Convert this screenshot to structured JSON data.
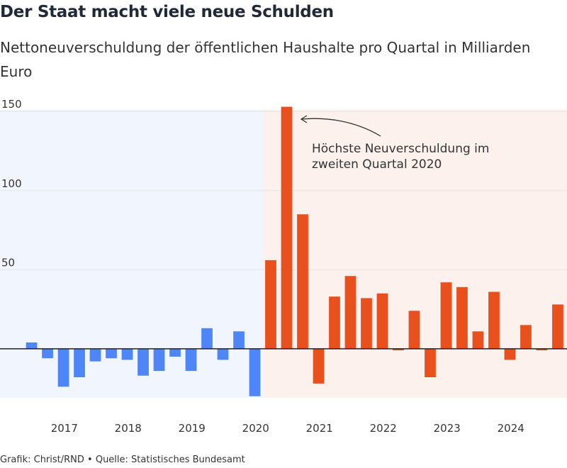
{
  "chart_data": {
    "type": "bar",
    "title": "Der Staat macht viele neue Schulden",
    "subtitle": "Nettoneuverschuldung der öffentlichen Haushalte pro Quartal in Milliarden Euro",
    "annotation": [
      "Höchste Neuverschuldung im",
      "zweiten Quartal 2020"
    ],
    "source": "Grafik: Christ/RND • Quelle: Statistisches Bundesamt",
    "x": [
      2016.375,
      2016.625,
      2016.875,
      2017.125,
      2017.375,
      2017.625,
      2017.875,
      2018.125,
      2018.375,
      2018.625,
      2018.875,
      2019.125,
      2019.375,
      2019.625,
      2019.875,
      2020.125,
      2020.375,
      2020.625,
      2020.875,
      2021.125,
      2021.375,
      2021.625,
      2021.875,
      2022.125,
      2022.375,
      2022.625,
      2022.875,
      2023.125,
      2023.375,
      2023.625,
      2023.875,
      2024.125,
      2024.375,
      2024.625
    ],
    "values": [
      4,
      -6,
      -24,
      -18,
      -8,
      -6,
      -7,
      -17,
      -14,
      -5,
      -14,
      13,
      -7,
      11,
      -30,
      56,
      153,
      85,
      -22,
      33,
      46,
      32,
      35,
      -1,
      24,
      -18,
      42,
      39,
      11,
      36,
      -7,
      15,
      -1,
      28
    ],
    "colors": [
      "#4f86f7",
      "#4f86f7",
      "#4f86f7",
      "#4f86f7",
      "#4f86f7",
      "#4f86f7",
      "#4f86f7",
      "#4f86f7",
      "#4f86f7",
      "#4f86f7",
      "#4f86f7",
      "#4f86f7",
      "#4f86f7",
      "#4f86f7",
      "#4f86f7",
      "#e8501e",
      "#e8501e",
      "#e8501e",
      "#e8501e",
      "#e8501e",
      "#e8501e",
      "#e8501e",
      "#e8501e",
      "#e8501e",
      "#e8501e",
      "#e8501e",
      "#e8501e",
      "#e8501e",
      "#e8501e",
      "#e8501e",
      "#e8501e",
      "#e8501e",
      "#e8501e",
      "#e8501e"
    ],
    "xlim": [
      2015.88,
      2024.77
    ],
    "xticks": [
      2017,
      2018,
      2019,
      2020,
      2021,
      2022,
      2023,
      2024
    ],
    "ylim": [
      -31,
      151
    ],
    "yticks": [
      50,
      100,
      150
    ],
    "grid": true
  }
}
